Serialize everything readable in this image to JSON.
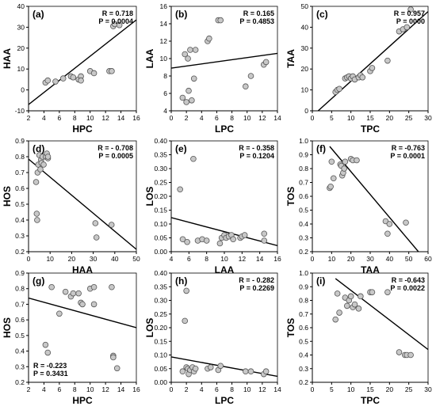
{
  "chart_data": [
    {
      "type": "scatter",
      "label": "(a)",
      "xlabel": "HPC",
      "ylabel": "HAA",
      "xlim": [
        2,
        16
      ],
      "ylim": [
        -10,
        40
      ],
      "xticks": [
        2,
        4,
        6,
        8,
        10,
        12,
        14,
        16
      ],
      "yticks": [
        -10,
        0,
        10,
        20,
        30,
        40
      ],
      "stats": [
        "R = 0.718",
        "P = 0.0004"
      ],
      "x": [
        4.2,
        4.5,
        5.5,
        6.5,
        7.5,
        7.8,
        8.5,
        8.8,
        8.8,
        10.0,
        10.5,
        12.5,
        12.8,
        13.0,
        13.2,
        13.8
      ],
      "y": [
        3.5,
        4.5,
        4.0,
        5.5,
        6.5,
        6.0,
        5.0,
        6.5,
        4.5,
        9.0,
        8.0,
        9.0,
        9.0,
        30.5,
        31.5,
        31.0
      ],
      "fit": [
        [
          2,
          -7
        ],
        [
          16,
          33.5
        ]
      ]
    },
    {
      "type": "scatter",
      "label": "(b)",
      "xlabel": "LPC",
      "ylabel": "LAA",
      "xlim": [
        0,
        14
      ],
      "ylim": [
        4,
        16
      ],
      "xticks": [
        0,
        2,
        4,
        6,
        8,
        10,
        12,
        14
      ],
      "yticks": [
        4,
        6,
        8,
        10,
        12,
        14,
        16
      ],
      "stats": [
        "R = 0.165",
        "P = 0.4853"
      ],
      "x": [
        1.5,
        1.8,
        2.0,
        2.2,
        2.3,
        2.5,
        2.7,
        3.0,
        3.2,
        4.8,
        5.0,
        6.2,
        6.5,
        9.8,
        10.5,
        12.2,
        12.5
      ],
      "y": [
        5.5,
        10.5,
        5.0,
        10.0,
        6.3,
        11.0,
        5.2,
        7.7,
        11.0,
        12.0,
        12.3,
        14.4,
        14.4,
        6.8,
        8.0,
        9.3,
        9.6
      ],
      "fit": [
        [
          0,
          8.9
        ],
        [
          14,
          10.6
        ]
      ]
    },
    {
      "type": "scatter",
      "label": "(c)",
      "xlabel": "TPC",
      "ylabel": "TAA",
      "xlim": [
        0,
        30
      ],
      "ylim": [
        0,
        50
      ],
      "xticks": [
        0,
        5,
        10,
        15,
        20,
        25,
        30
      ],
      "yticks": [
        0,
        10,
        20,
        30,
        40,
        50
      ],
      "stats": [
        "R = 0.957",
        "P = 0000"
      ],
      "x": [
        6.0,
        6.5,
        7.0,
        8.5,
        9.0,
        9.5,
        10.0,
        10.5,
        11.0,
        12.0,
        12.5,
        13.0,
        15.0,
        15.5,
        19.5,
        22.5,
        23.5,
        24.5,
        25.5
      ],
      "y": [
        9.0,
        10.0,
        10.5,
        15.5,
        16.0,
        16.5,
        15.5,
        16.5,
        15.0,
        16.0,
        17.0,
        16.0,
        19.0,
        20.5,
        24.0,
        38.0,
        39.0,
        40.0,
        48.5
      ],
      "fit": [
        [
          1.5,
          0
        ],
        [
          30,
          47.5
        ]
      ]
    },
    {
      "type": "scatter",
      "label": "(d)",
      "xlabel": "HAA",
      "ylabel": "HOS",
      "xlim": [
        0,
        50
      ],
      "ylim": [
        0.2,
        0.9
      ],
      "xticks": [
        0,
        10,
        20,
        30,
        40,
        50
      ],
      "yticks": [
        0.2,
        0.3,
        0.4,
        0.5,
        0.6,
        0.7,
        0.8,
        0.9
      ],
      "stats": [
        "R = - 0.708",
        "P = 0.0005"
      ],
      "x": [
        3.5,
        3.8,
        4.0,
        4.2,
        4.5,
        5.0,
        5.5,
        5.8,
        6.0,
        6.5,
        7.0,
        8.0,
        8.5,
        9.0,
        9.0,
        31.0,
        31.5,
        38.5
      ],
      "y": [
        0.64,
        0.44,
        0.4,
        0.7,
        0.75,
        0.81,
        0.72,
        0.78,
        0.76,
        0.8,
        0.75,
        0.8,
        0.82,
        0.79,
        0.8,
        0.38,
        0.29,
        0.37
      ],
      "fit": [
        [
          0,
          0.785
        ],
        [
          50,
          0.215
        ]
      ]
    },
    {
      "type": "scatter",
      "label": "(e)",
      "xlabel": "LAA",
      "ylabel": "LOS",
      "xlim": [
        4,
        16
      ],
      "ylim": [
        0,
        0.4
      ],
      "xticks": [
        4,
        6,
        8,
        10,
        12,
        14,
        16
      ],
      "yticks": [
        0.0,
        0.05,
        0.1,
        0.15,
        0.2,
        0.25,
        0.3,
        0.35,
        0.4
      ],
      "stats": [
        "R = - 0.358",
        "P = 0.1204"
      ],
      "x": [
        5.0,
        5.3,
        5.8,
        6.5,
        7.0,
        7.5,
        8.0,
        9.5,
        9.7,
        10.0,
        10.2,
        10.5,
        10.8,
        11.0,
        11.8,
        12.0,
        12.3,
        14.5,
        14.5
      ],
      "y": [
        0.225,
        0.045,
        0.035,
        0.335,
        0.04,
        0.045,
        0.04,
        0.03,
        0.05,
        0.06,
        0.05,
        0.055,
        0.06,
        0.045,
        0.05,
        0.055,
        0.06,
        0.04,
        0.065
      ],
      "fit": [
        [
          4,
          0.123
        ],
        [
          16,
          0.022
        ]
      ]
    },
    {
      "type": "scatter",
      "label": "(f)",
      "xlabel": "TAA",
      "ylabel": "TOS",
      "xlim": [
        0,
        60
      ],
      "ylim": [
        0.2,
        1.0
      ],
      "xticks": [
        0,
        10,
        20,
        30,
        40,
        50,
        60
      ],
      "yticks": [
        0.2,
        0.3,
        0.4,
        0.5,
        0.6,
        0.7,
        0.8,
        0.9,
        1.0
      ],
      "stats": [
        "R = -0.763",
        "P = 0.0001"
      ],
      "x": [
        9.0,
        9.5,
        10.0,
        11.0,
        14.5,
        15.0,
        15.5,
        16.0,
        16.5,
        17.0,
        20.0,
        21.0,
        23.0,
        38.0,
        39.0,
        40.0,
        48.5
      ],
      "y": [
        0.66,
        0.67,
        0.85,
        0.73,
        0.83,
        0.82,
        0.75,
        0.77,
        0.8,
        0.85,
        0.87,
        0.86,
        0.86,
        0.42,
        0.33,
        0.4,
        0.41
      ],
      "fit": [
        [
          9,
          0.96
        ],
        [
          55,
          0.2
        ]
      ]
    },
    {
      "type": "scatter",
      "label": "(g)",
      "xlabel": "HPC",
      "ylabel": "HOS",
      "xlim": [
        2,
        16
      ],
      "ylim": [
        0.2,
        0.9
      ],
      "xticks": [
        2,
        4,
        6,
        8,
        10,
        12,
        14,
        16
      ],
      "yticks": [
        0.2,
        0.3,
        0.4,
        0.5,
        0.6,
        0.7,
        0.8,
        0.9
      ],
      "stats": [
        "R = -0.223",
        "P = 0.3431"
      ],
      "x": [
        4.2,
        4.5,
        5.0,
        6.0,
        6.8,
        7.5,
        7.8,
        8.5,
        8.8,
        9.0,
        10.0,
        10.5,
        10.5,
        12.8,
        13.0,
        13.0,
        13.5
      ],
      "y": [
        0.44,
        0.39,
        0.81,
        0.64,
        0.78,
        0.75,
        0.77,
        0.77,
        0.71,
        0.7,
        0.8,
        0.81,
        0.7,
        0.81,
        0.37,
        0.36,
        0.29
      ],
      "fit": [
        [
          2,
          0.74
        ],
        [
          16,
          0.55
        ]
      ]
    },
    {
      "type": "scatter",
      "label": "(h)",
      "xlabel": "LPC",
      "ylabel": "LOS",
      "xlim": [
        0,
        14
      ],
      "ylim": [
        0,
        0.4
      ],
      "xticks": [
        0,
        2,
        4,
        6,
        8,
        10,
        12,
        14
      ],
      "yticks": [
        0.0,
        0.05,
        0.1,
        0.15,
        0.2,
        0.25,
        0.3,
        0.35,
        0.4
      ],
      "stats": [
        "R = - 0.282",
        "P = 0.2269"
      ],
      "x": [
        1.5,
        1.8,
        2.0,
        2.0,
        2.2,
        2.3,
        2.5,
        2.8,
        3.0,
        3.2,
        4.8,
        5.2,
        6.2,
        6.5,
        9.8,
        10.5,
        12.2,
        12.5
      ],
      "y": [
        0.04,
        0.225,
        0.055,
        0.335,
        0.05,
        0.03,
        0.045,
        0.055,
        0.04,
        0.05,
        0.05,
        0.055,
        0.045,
        0.06,
        0.04,
        0.04,
        0.03,
        0.04
      ],
      "fit": [
        [
          0,
          0.093
        ],
        [
          14,
          0.022
        ]
      ]
    },
    {
      "type": "scatter",
      "label": "(i)",
      "xlabel": "TPC",
      "ylabel": "TOS",
      "xlim": [
        0,
        30
      ],
      "ylim": [
        0.2,
        1.0
      ],
      "xticks": [
        0,
        5,
        10,
        15,
        20,
        25,
        30
      ],
      "yticks": [
        0.2,
        0.3,
        0.4,
        0.5,
        0.6,
        0.7,
        0.8,
        0.9,
        1.0
      ],
      "stats": [
        "R = -0.643",
        "P = 0.0022"
      ],
      "x": [
        6.0,
        6.5,
        7.0,
        8.5,
        9.0,
        9.5,
        10.0,
        10.5,
        11.0,
        12.0,
        12.5,
        15.0,
        15.5,
        19.5,
        22.5,
        24.0,
        24.5,
        25.5
      ],
      "y": [
        0.66,
        0.85,
        0.71,
        0.82,
        0.76,
        0.8,
        0.83,
        0.75,
        0.77,
        0.74,
        0.83,
        0.86,
        0.86,
        0.86,
        0.42,
        0.4,
        0.4,
        0.4
      ],
      "fit": [
        [
          6,
          0.96
        ],
        [
          30,
          0.44
        ]
      ]
    }
  ]
}
